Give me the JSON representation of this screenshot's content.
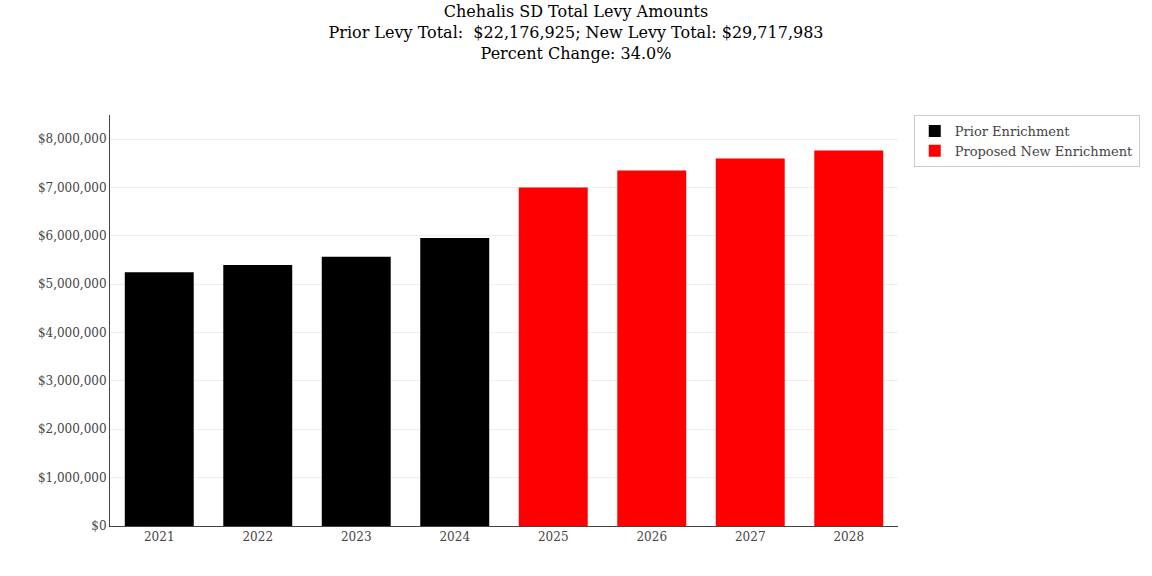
{
  "chart_data": {
    "type": "bar",
    "title": "Chehalis SD Total Levy Amounts\nPrior Levy Total:  $22,176,925; New Levy Total: $29,717,983\nPercent Change: 34.0%",
    "categories": [
      "2021",
      "2022",
      "2023",
      "2024",
      "2025",
      "2026",
      "2027",
      "2028"
    ],
    "series": [
      {
        "name": "Prior Enrichment",
        "color": "#000000",
        "values": [
          5250000,
          5400000,
          5570000,
          5956925,
          null,
          null,
          null,
          null
        ]
      },
      {
        "name": "Proposed New Enrichment",
        "color": "#ff0000",
        "values": [
          null,
          null,
          null,
          null,
          7000000,
          7350000,
          7600000,
          7767983
        ]
      }
    ],
    "ylim": [
      0,
      8500000
    ],
    "yticks": [
      {
        "value": 0,
        "label": "$0"
      },
      {
        "value": 1000000,
        "label": "$1,000,000"
      },
      {
        "value": 2000000,
        "label": "$2,000,000"
      },
      {
        "value": 3000000,
        "label": "$3,000,000"
      },
      {
        "value": 4000000,
        "label": "$4,000,000"
      },
      {
        "value": 5000000,
        "label": "$5,000,000"
      },
      {
        "value": 6000000,
        "label": "$6,000,000"
      },
      {
        "value": 7000000,
        "label": "$7,000,000"
      },
      {
        "value": 8000000,
        "label": "$8,000,000"
      }
    ],
    "grid": true,
    "legend": "right"
  }
}
